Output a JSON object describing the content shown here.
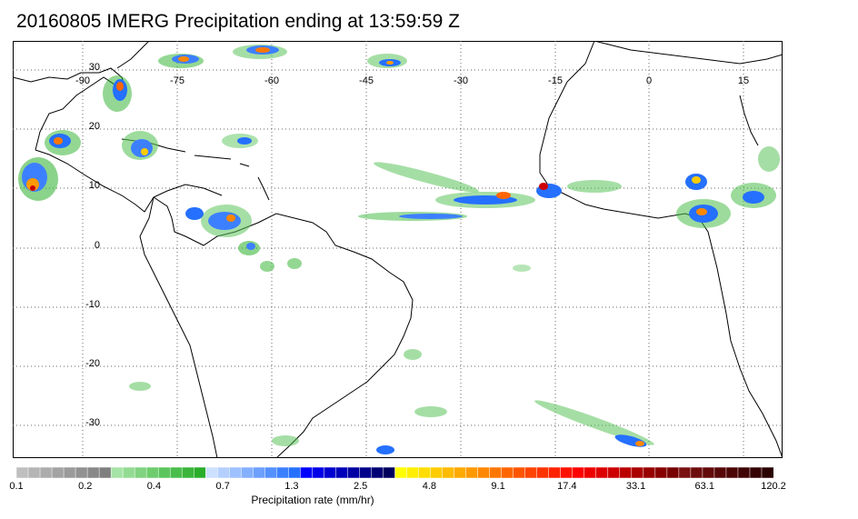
{
  "title": "20160805 IMERG Precipitation ending at 13:59:59 Z",
  "map": {
    "lon_labels": [
      "-90",
      "-75",
      "-60",
      "-45",
      "-30",
      "-15",
      "0",
      "15"
    ],
    "lat_labels": [
      "30",
      "20",
      "10",
      "0",
      "-10",
      "-20",
      "-30"
    ],
    "gridline_style": "dotted"
  },
  "colorbar": {
    "title": "Precipitation rate (mm/hr)",
    "tick_labels": [
      "0.1",
      "0.2",
      "0.4",
      "0.7",
      "1.3",
      "2.5",
      "4.8",
      "9.1",
      "17.4",
      "33.1",
      "63.1",
      "120.2"
    ],
    "colors": [
      "#bfbfbf",
      "#b5b5b5",
      "#acacac",
      "#a3a3a3",
      "#9a9a9a",
      "#919191",
      "#888888",
      "#7f7f7f",
      "#a6e3a6",
      "#93db93",
      "#80d380",
      "#6ecc6e",
      "#5cc55c",
      "#4bbd4b",
      "#3ab53a",
      "#2aae2a",
      "#cde0ff",
      "#b5d0ff",
      "#9dc0ff",
      "#85b0ff",
      "#6da0ff",
      "#5590ff",
      "#3d80ff",
      "#2570ff",
      "#0000ff",
      "#0000e8",
      "#0000d1",
      "#0000ba",
      "#0000a3",
      "#00008c",
      "#000075",
      "#00005e",
      "#ffff00",
      "#ffee00",
      "#ffdd00",
      "#ffcc00",
      "#ffbb00",
      "#ffaa00",
      "#ff9900",
      "#ff8800",
      "#ff7700",
      "#ff6600",
      "#ff5500",
      "#ff4400",
      "#ff3300",
      "#ff2200",
      "#ff1100",
      "#ff0000",
      "#ee0000",
      "#dd0000",
      "#cc0000",
      "#bb0000",
      "#aa0000",
      "#990000",
      "#880000",
      "#770000",
      "#7a1010",
      "#6e0d0d",
      "#620a0a",
      "#560808",
      "#4b0606",
      "#400404",
      "#350303",
      "#2b0202"
    ]
  }
}
